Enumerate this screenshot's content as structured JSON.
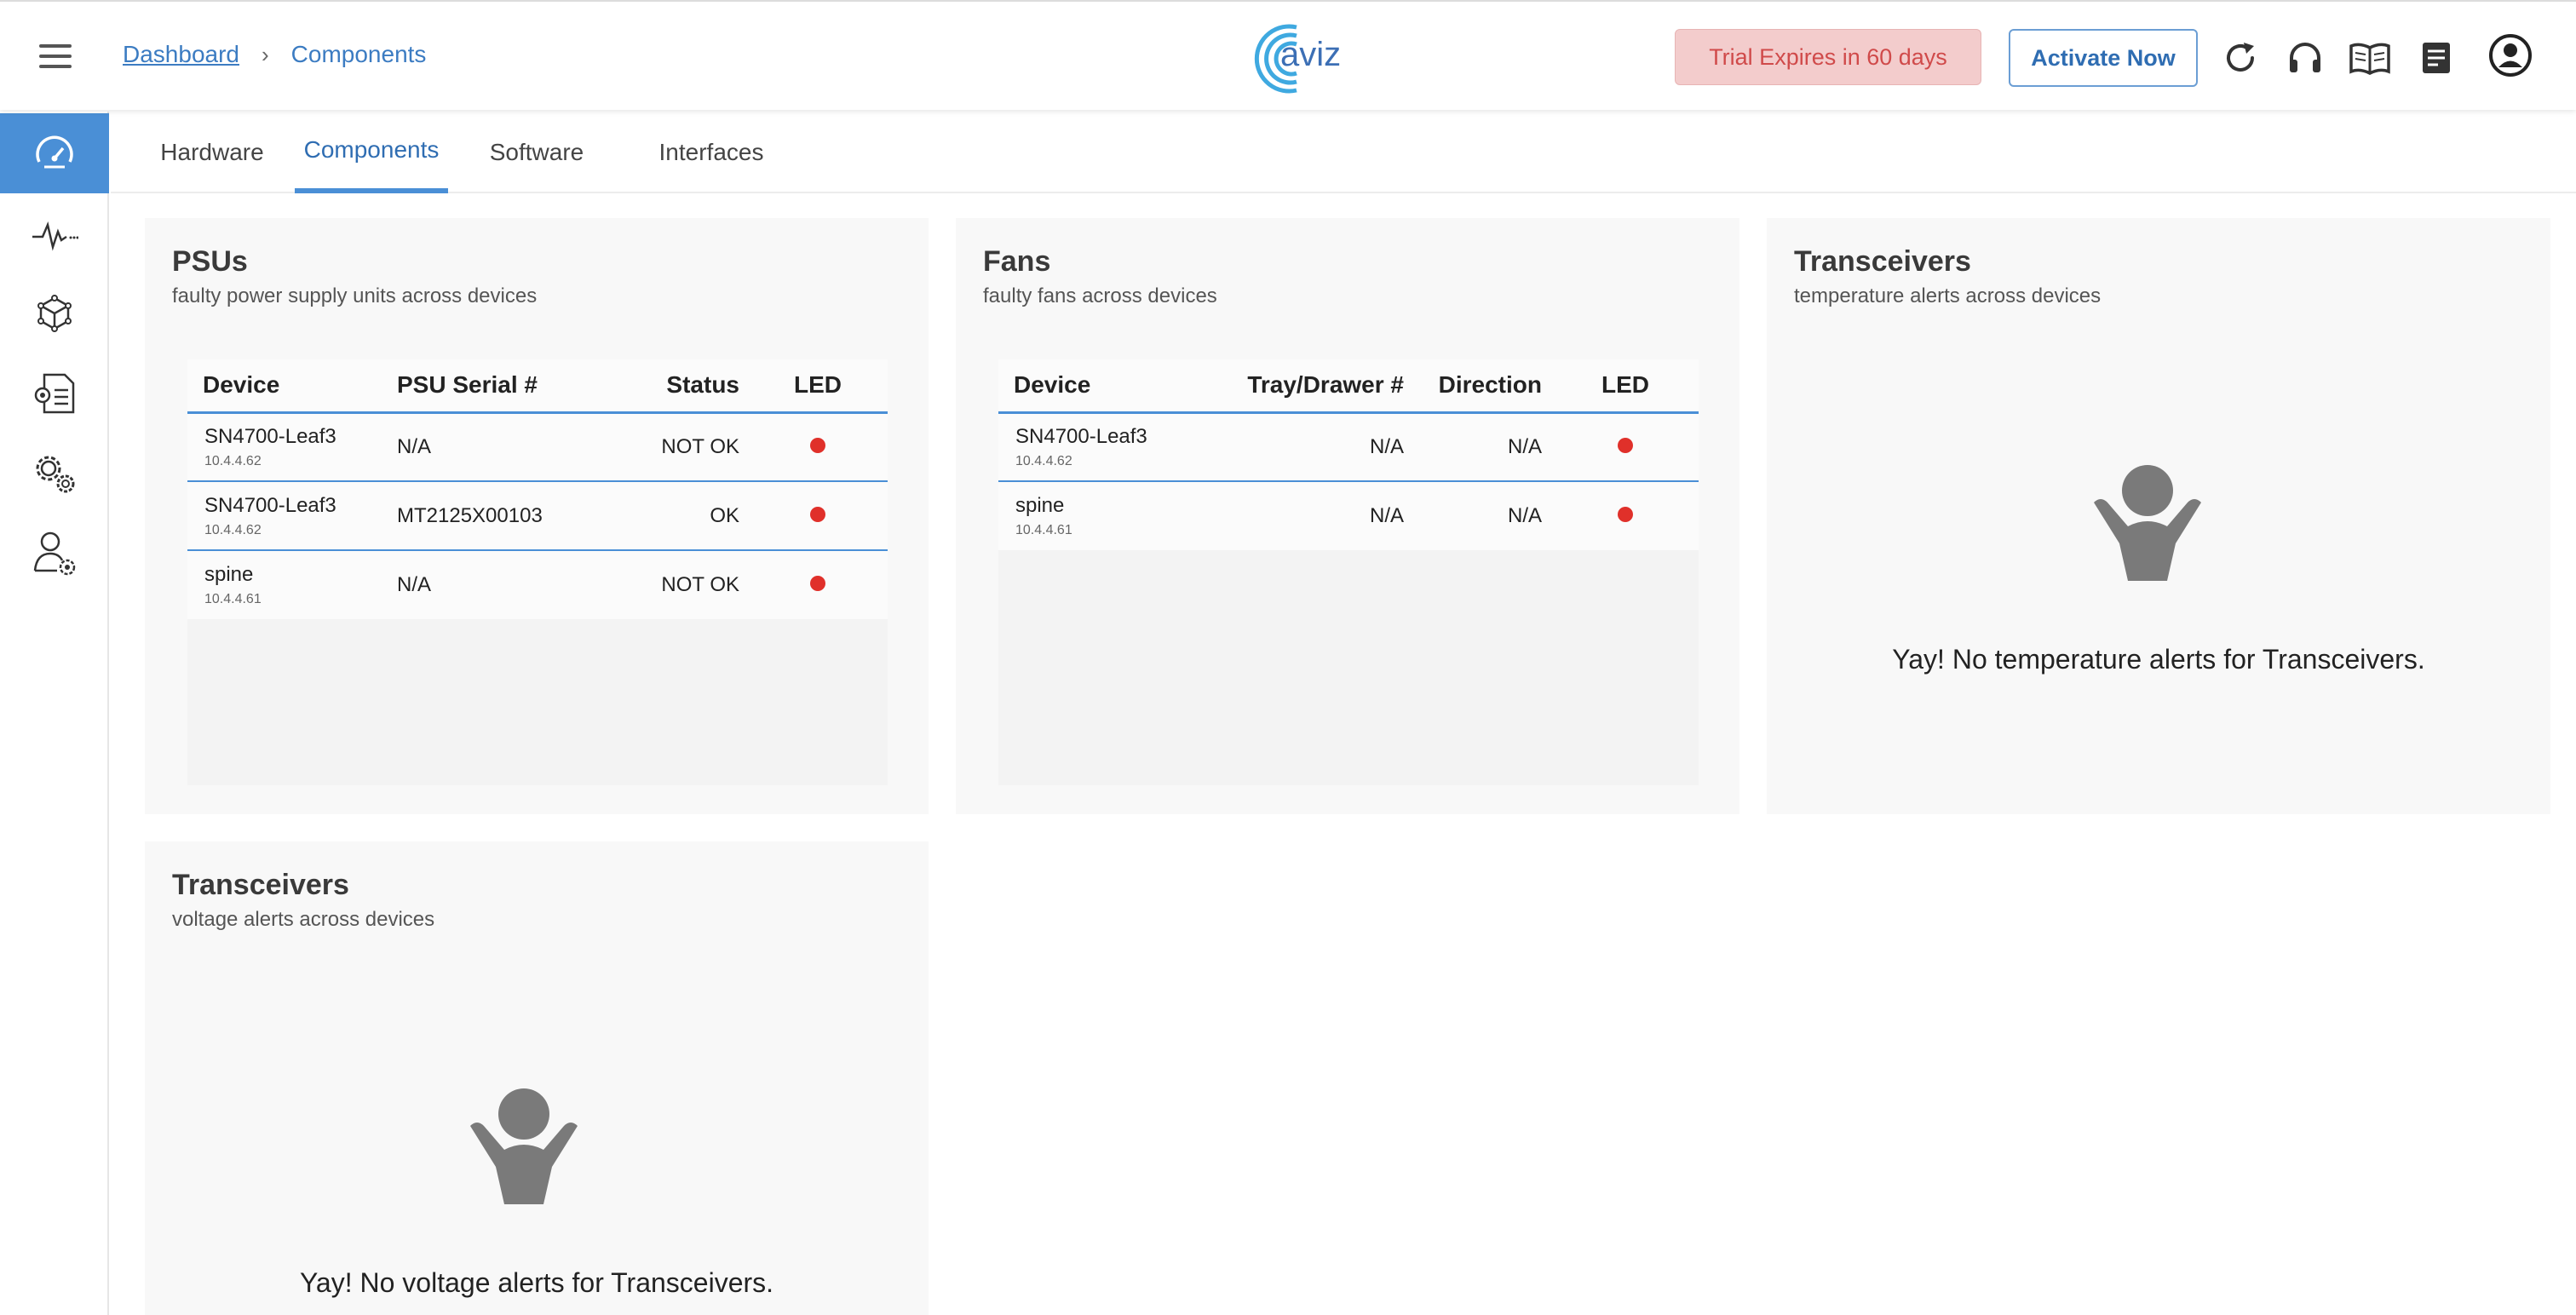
{
  "header": {
    "breadcrumb": {
      "root": "Dashboard",
      "separator": "›",
      "current": "Components"
    },
    "logo_text": "aviz",
    "trial_label": "Trial Expires in 60 days",
    "activate_label": "Activate Now",
    "icons": [
      "refresh-icon",
      "headset-icon",
      "book-icon",
      "document-icon",
      "user-profile-icon"
    ]
  },
  "sidebar": {
    "items": [
      {
        "icon": "dashboard-gauge-icon",
        "active": true
      },
      {
        "icon": "pulse-icon",
        "active": false
      },
      {
        "icon": "network-cube-icon",
        "active": false
      },
      {
        "icon": "config-document-icon",
        "active": false
      },
      {
        "icon": "settings-gears-icon",
        "active": false
      },
      {
        "icon": "user-settings-icon",
        "active": false
      }
    ]
  },
  "tabs": [
    {
      "label": "Hardware",
      "active": false
    },
    {
      "label": "Components",
      "active": true
    },
    {
      "label": "Software",
      "active": false
    },
    {
      "label": "Interfaces",
      "active": false
    }
  ],
  "cards": {
    "psus": {
      "title": "PSUs",
      "subtitle": "faulty power supply units across devices",
      "columns": [
        "Device",
        "PSU Serial #",
        "Status",
        "LED"
      ],
      "rows": [
        {
          "device": "SN4700-Leaf3",
          "ip": "10.4.4.62",
          "serial": "N/A",
          "status": "NOT OK",
          "led": "red"
        },
        {
          "device": "SN4700-Leaf3",
          "ip": "10.4.4.62",
          "serial": "MT2125X00103",
          "status": "OK",
          "led": "red"
        },
        {
          "device": "spine",
          "ip": "10.4.4.61",
          "serial": "N/A",
          "status": "NOT OK",
          "led": "red"
        }
      ]
    },
    "fans": {
      "title": "Fans",
      "subtitle": "faulty fans across devices",
      "columns": [
        "Device",
        "Tray/Drawer #",
        "Direction",
        "LED"
      ],
      "rows": [
        {
          "device": "SN4700-Leaf3",
          "ip": "10.4.4.62",
          "tray": "N/A",
          "direction": "N/A",
          "led": "red"
        },
        {
          "device": "spine",
          "ip": "10.4.4.61",
          "tray": "N/A",
          "direction": "N/A",
          "led": "red"
        }
      ]
    },
    "transceivers_temp": {
      "title": "Transceivers",
      "subtitle": "temperature alerts across devices",
      "empty_message": "Yay! No temperature alerts for Transceivers."
    },
    "transceivers_volt": {
      "title": "Transceivers",
      "subtitle": "voltage alerts across devices",
      "empty_message": "Yay! No voltage alerts for Transceivers."
    }
  },
  "colors": {
    "accent": "#4a8fd6",
    "led_red": "#e0302a",
    "trial_bg": "#f3cccc",
    "trial_text": "#d04a4a"
  }
}
